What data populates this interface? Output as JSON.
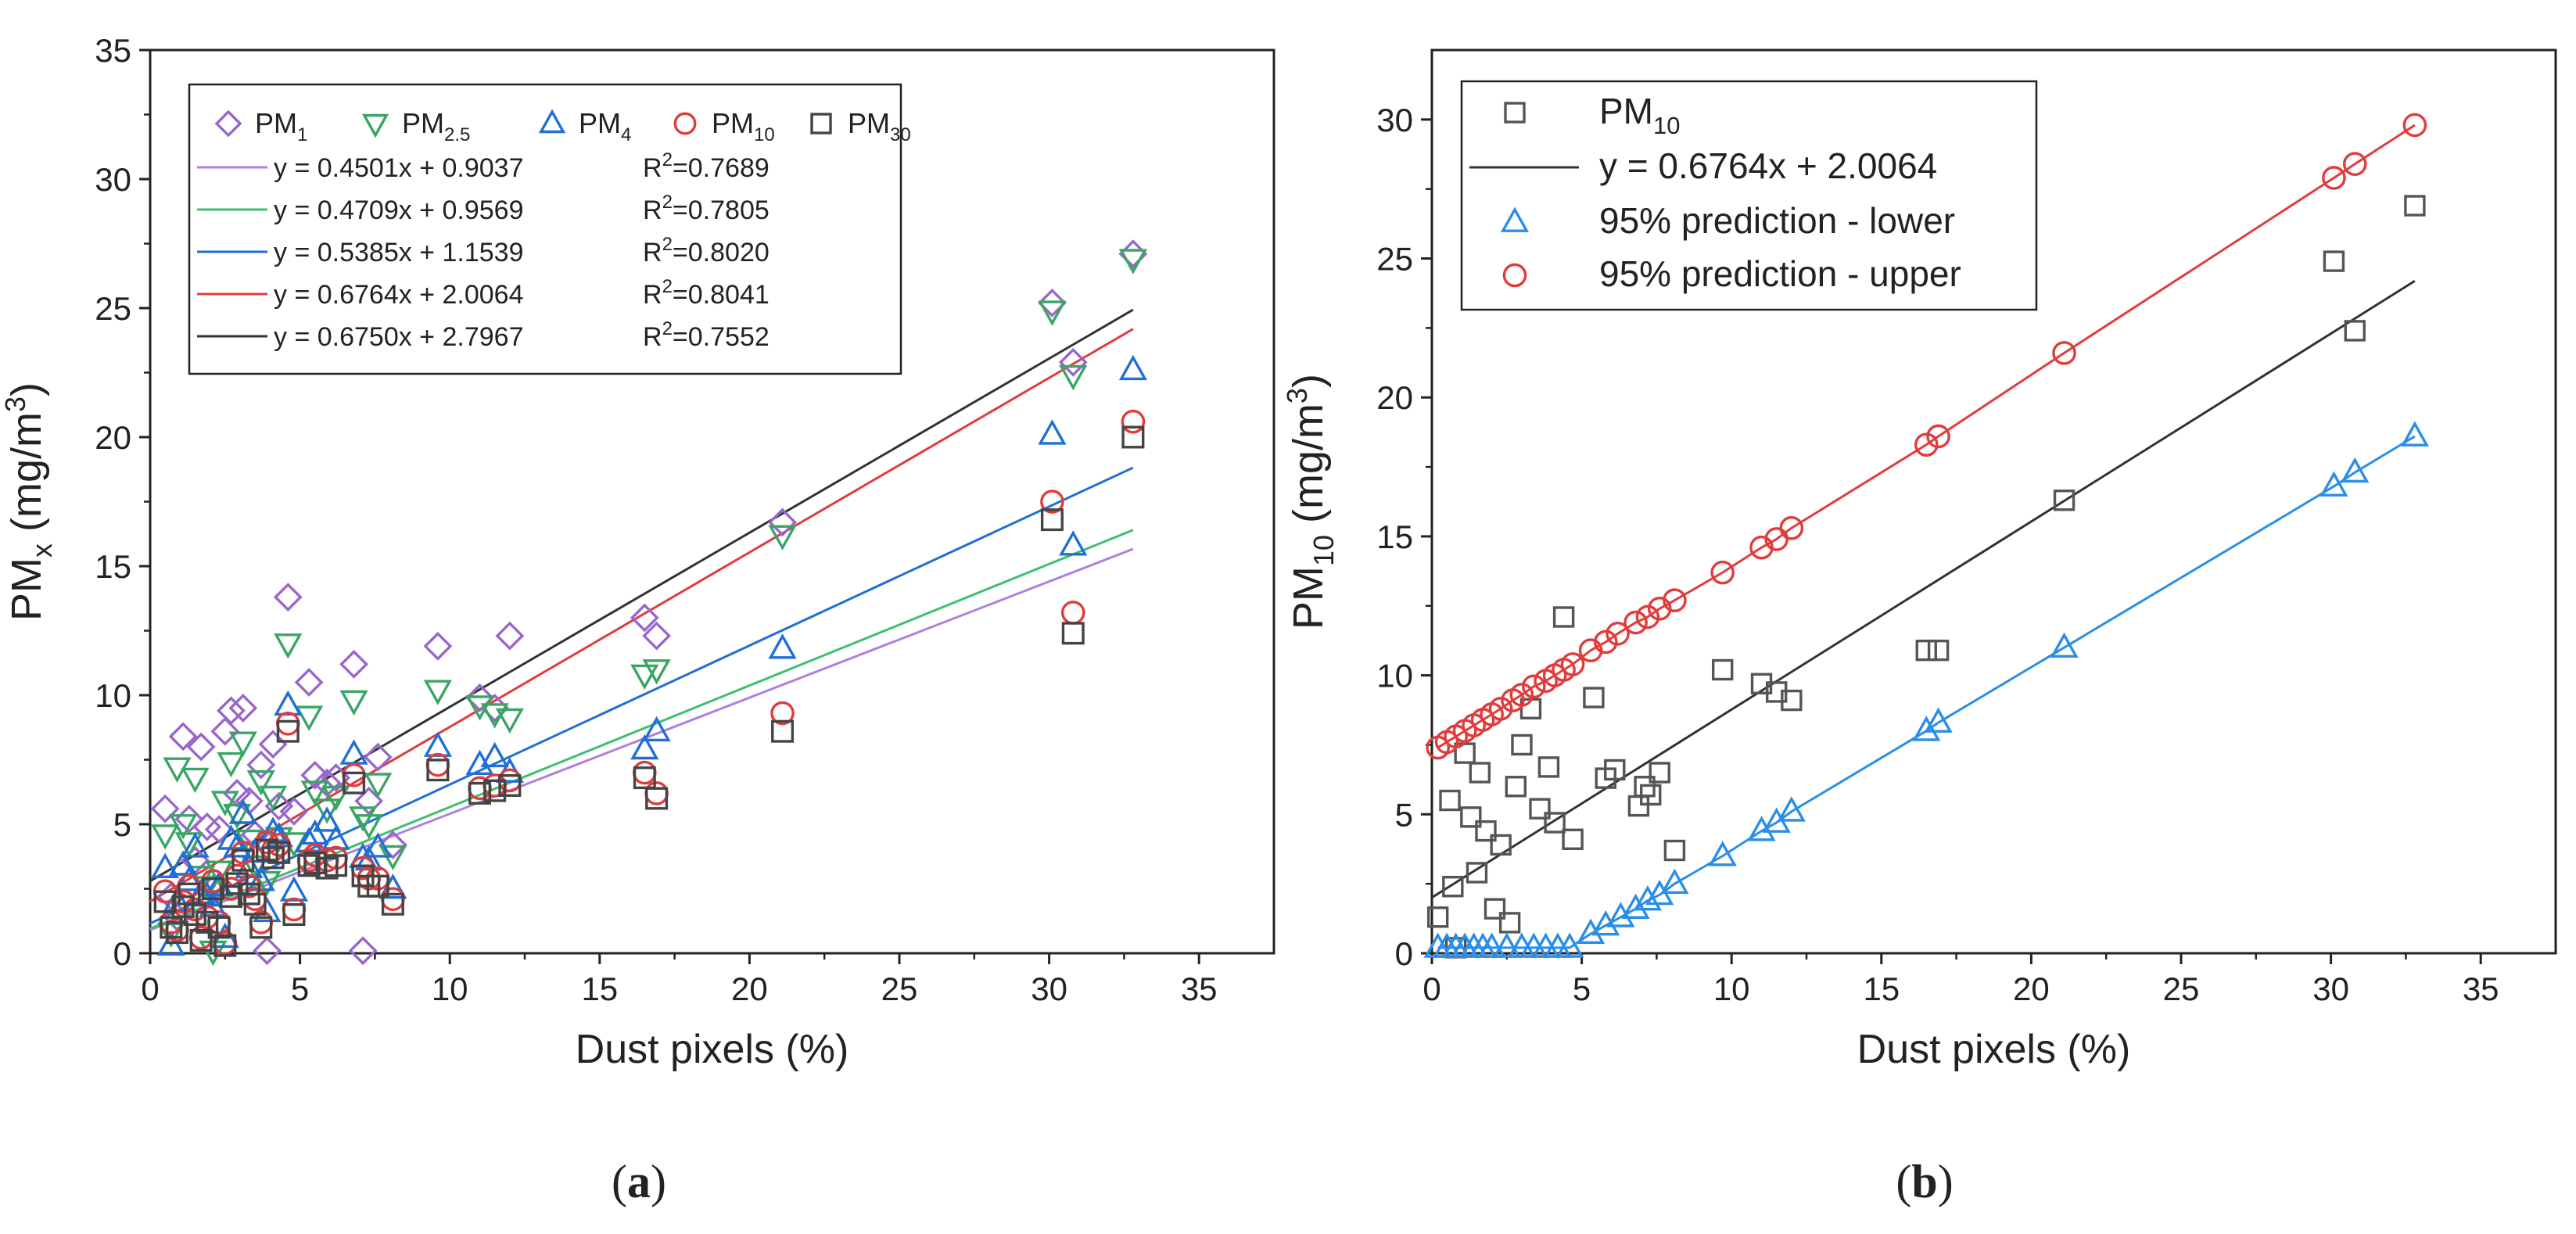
{
  "chart_data": [
    {
      "panel": "(a)",
      "panel_letter": "a",
      "type": "scatter",
      "xlabel": "Dust pixels (%)",
      "ylabel": {
        "base": "PM",
        "sub": "x",
        "unit_open": " (mg/m",
        "unit_sup": "3",
        "unit_close": ")"
      },
      "xlim": [
        0,
        37.5
      ],
      "ylim": [
        0,
        35
      ],
      "xticks": [
        0,
        5,
        10,
        15,
        20,
        25,
        30,
        35
      ],
      "yticks": [
        0,
        5,
        10,
        15,
        20,
        25,
        30,
        35
      ],
      "x": [
        0.5,
        0.7,
        0.9,
        1.1,
        1.3,
        1.5,
        1.7,
        1.9,
        2.1,
        2.3,
        2.5,
        2.7,
        2.9,
        3.1,
        3.3,
        3.5,
        3.7,
        3.9,
        4.1,
        4.3,
        4.6,
        4.8,
        5.3,
        5.5,
        5.9,
        6.2,
        6.8,
        7.1,
        7.3,
        7.6,
        8.1,
        9.6,
        11.0,
        11.5,
        12.0,
        16.5,
        16.9,
        21.1,
        30.1,
        30.8,
        32.8
      ],
      "series": [
        {
          "name_base": "PM",
          "name_sub": "1",
          "marker": "diamond",
          "color": "#9966cc",
          "values": [
            5.6,
            2.2,
            1.4,
            8.4,
            5.2,
            3.6,
            8.0,
            4.9,
            2.5,
            4.8,
            8.6,
            9.4,
            6.2,
            9.5,
            5.9,
            4.6,
            7.3,
            0.1,
            8.1,
            5.7,
            13.8,
            5.5,
            10.5,
            6.9,
            6.6,
            6.8,
            11.2,
            0.1,
            5.9,
            7.6,
            4.2,
            11.9,
            9.9,
            9.5,
            12.3,
            13.0,
            12.3,
            16.7,
            25.2,
            22.9,
            27.1
          ],
          "fit": {
            "slope": 0.4501,
            "intercept": 0.9037,
            "r2": "0.7689",
            "label": "y = 0.4501x + 0.9037",
            "color": "#b07fe0"
          }
        },
        {
          "name_base": "PM",
          "name_sub": "2.5",
          "marker": "triangle-down",
          "color": "#3aa564",
          "values": [
            4.6,
            0.8,
            7.2,
            5.0,
            4.3,
            6.8,
            3.0,
            2.6,
            0.1,
            3.2,
            5.9,
            7.4,
            5.4,
            8.2,
            4.4,
            3.4,
            6.7,
            2.8,
            6.1,
            4.5,
            12.0,
            4.3,
            9.2,
            6.3,
            5.6,
            6.1,
            9.8,
            5.3,
            5.0,
            6.6,
            3.8,
            10.2,
            9.6,
            9.3,
            9.1,
            10.8,
            11.0,
            16.2,
            24.9,
            22.4,
            26.9
          ],
          "fit": {
            "slope": 0.4709,
            "intercept": 0.9569,
            "r2": "0.7805",
            "label": "y = 0.4709x + 0.9569",
            "color": "#3fbf6f"
          }
        },
        {
          "name_base": "PM",
          "name_sub": "4",
          "marker": "triangle-up",
          "color": "#1f6fd6",
          "values": [
            3.3,
            0.3,
            2.0,
            3.4,
            2.8,
            4.1,
            2.3,
            2.2,
            1.8,
            2.6,
            0.6,
            4.4,
            4.1,
            5.4,
            3.3,
            3.9,
            2.8,
            1.6,
            4.7,
            4.5,
            9.6,
            2.4,
            4.3,
            4.6,
            5.1,
            4.4,
            7.7,
            3.7,
            3.6,
            4.1,
            2.5,
            8.0,
            7.3,
            7.6,
            7.0,
            7.9,
            8.6,
            11.8,
            20.1,
            15.8,
            22.6
          ],
          "fit": {
            "slope": 0.5385,
            "intercept": 1.1539,
            "r2": "0.8020",
            "label": "y = 0.5385x + 1.1539",
            "color": "#1f6fd6"
          }
        },
        {
          "name_base": "PM",
          "name_sub": "10",
          "marker": "circle",
          "color": "#e23b3b",
          "values": [
            2.4,
            1.2,
            0.9,
            2.0,
            2.6,
            1.7,
            0.6,
            1.4,
            2.8,
            1.2,
            0.4,
            2.5,
            3.0,
            3.9,
            2.6,
            2.1,
            1.2,
            4.3,
            4.0,
            4.2,
            8.9,
            1.7,
            3.6,
            3.8,
            3.6,
            3.7,
            6.9,
            3.3,
            2.9,
            2.9,
            2.1,
            7.3,
            6.4,
            6.5,
            6.7,
            7.0,
            6.2,
            9.3,
            17.5,
            13.2,
            20.6
          ],
          "fit": {
            "slope": 0.6764,
            "intercept": 2.0064,
            "r2": "0.8041",
            "label": "y = 0.6764x + 2.0064",
            "color": "#e23b3b"
          }
        },
        {
          "name_base": "PM",
          "name_sub": "30",
          "marker": "square",
          "color": "#444444",
          "values": [
            2.0,
            1.0,
            0.8,
            1.8,
            2.3,
            1.5,
            0.5,
            1.2,
            2.5,
            1.0,
            0.3,
            2.2,
            2.7,
            3.6,
            2.3,
            1.9,
            1.0,
            4.0,
            3.7,
            3.9,
            8.6,
            1.5,
            3.4,
            3.5,
            3.3,
            3.4,
            6.6,
            3.0,
            2.6,
            2.6,
            1.9,
            7.1,
            6.2,
            6.3,
            6.5,
            6.8,
            6.0,
            8.6,
            16.8,
            12.4,
            20.0
          ],
          "fit": {
            "slope": 0.675,
            "intercept": 2.7967,
            "r2": "0.7552",
            "label": "y = 0.6750x + 2.7967",
            "color": "#333333"
          }
        }
      ],
      "legend_location": "top-left"
    },
    {
      "panel": "(b)",
      "panel_letter": "b",
      "type": "scatter",
      "xlabel": "Dust pixels (%)",
      "ylabel": {
        "base": "PM",
        "sub": "10",
        "unit_open": " (mg/m",
        "unit_sup": "3",
        "unit_close": ")"
      },
      "xlim": [
        0,
        37.5
      ],
      "ylim": [
        0,
        32.5
      ],
      "xticks": [
        0,
        5,
        10,
        15,
        20,
        25,
        30,
        35
      ],
      "yticks": [
        0,
        5,
        10,
        15,
        20,
        25,
        30
      ],
      "observed": {
        "name_base": "PM",
        "name_sub": "10",
        "marker": "square",
        "color": "#555555",
        "x": [
          0.2,
          0.6,
          0.7,
          0.8,
          1.1,
          1.3,
          1.5,
          1.6,
          1.8,
          2.1,
          2.3,
          2.6,
          2.8,
          3.0,
          3.3,
          3.6,
          3.9,
          4.1,
          4.4,
          4.7,
          5.4,
          5.8,
          6.1,
          6.9,
          7.1,
          7.3,
          7.6,
          8.1,
          9.7,
          11.0,
          11.5,
          12.0,
          16.5,
          16.9,
          21.1,
          30.1,
          30.8,
          32.8
        ],
        "y": [
          1.3,
          5.5,
          2.4,
          0.2,
          7.2,
          4.9,
          2.9,
          6.5,
          4.4,
          1.6,
          3.9,
          1.1,
          6.0,
          7.5,
          8.8,
          5.2,
          6.7,
          4.7,
          12.1,
          4.1,
          9.2,
          6.3,
          6.6,
          5.3,
          6.0,
          5.7,
          6.5,
          3.7,
          10.2,
          9.7,
          9.4,
          9.1,
          10.9,
          10.9,
          16.3,
          24.9,
          22.4,
          26.9
        ]
      },
      "fit": {
        "label": "y = 0.6764x + 2.0064",
        "slope": 0.6764,
        "intercept": 2.0064,
        "color": "#333333"
      },
      "lower": {
        "label": "95% prediction - lower",
        "marker": "triangle-up",
        "color": "#2a8ee8",
        "x": [
          0.2,
          0.5,
          0.8,
          1.1,
          1.4,
          1.7,
          2.0,
          2.5,
          3.0,
          3.4,
          3.8,
          4.2,
          4.6,
          5.3,
          5.8,
          6.3,
          6.8,
          7.2,
          7.6,
          8.1,
          9.7,
          11.0,
          11.5,
          12.0,
          16.5,
          16.9,
          21.1,
          30.1,
          30.8,
          32.8
        ],
        "y": [
          0.2,
          0.2,
          0.2,
          0.2,
          0.2,
          0.2,
          0.2,
          0.2,
          0.2,
          0.2,
          0.2,
          0.2,
          0.2,
          0.7,
          1.0,
          1.3,
          1.6,
          1.9,
          2.1,
          2.5,
          3.5,
          4.4,
          4.7,
          5.1,
          8.0,
          8.3,
          11.0,
          16.8,
          17.3,
          18.6
        ],
        "line_color": "#2a8ee8"
      },
      "upper": {
        "label": "95% prediction - upper",
        "marker": "circle",
        "color": "#e23b3b",
        "x": [
          0.2,
          0.5,
          0.8,
          1.1,
          1.4,
          1.7,
          2.0,
          2.3,
          2.7,
          3.0,
          3.4,
          3.8,
          4.1,
          4.4,
          4.7,
          5.3,
          5.8,
          6.2,
          6.8,
          7.2,
          7.6,
          8.1,
          9.7,
          11.0,
          11.5,
          12.0,
          16.5,
          16.9,
          21.1,
          30.1,
          30.8,
          32.8
        ],
        "y": [
          7.4,
          7.6,
          7.8,
          8.0,
          8.2,
          8.4,
          8.6,
          8.8,
          9.1,
          9.3,
          9.6,
          9.8,
          10.0,
          10.2,
          10.4,
          10.9,
          11.2,
          11.5,
          11.9,
          12.1,
          12.4,
          12.7,
          13.7,
          14.6,
          14.9,
          15.3,
          18.3,
          18.6,
          21.6,
          27.9,
          28.4,
          29.8
        ],
        "line_color": "#e23b3b"
      },
      "legend_location": "top-left"
    }
  ]
}
